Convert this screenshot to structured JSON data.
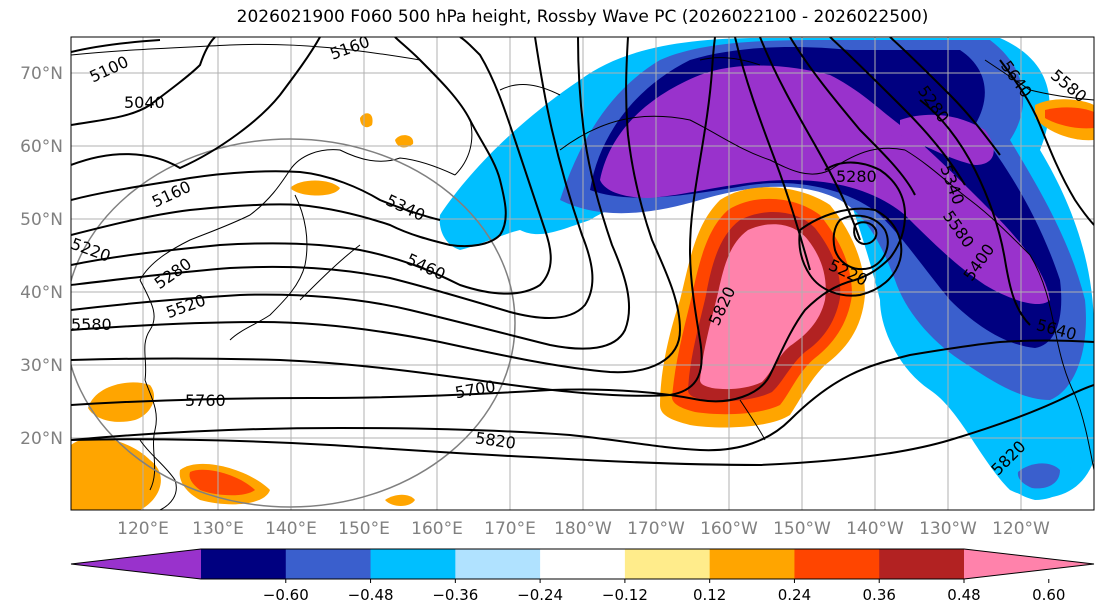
{
  "title": "2026021900 F060 500 hPa height, Rossby Wave PC (2026022100 - 2026022500)",
  "lat_labels": [
    "70°N",
    "60°N",
    "50°N",
    "40°N",
    "30°N",
    "20°N"
  ],
  "lon_labels": [
    "120°E",
    "130°E",
    "140°E",
    "150°E",
    "160°E",
    "170°E",
    "180°W",
    "170°W",
    "160°W",
    "150°W",
    "140°W",
    "130°W",
    "120°W"
  ],
  "colorbar": {
    "colors": [
      "#9932cc",
      "#000080",
      "#3a5fcd",
      "#00bfff",
      "#b0e2ff",
      "#ffffff",
      "#ffec8b",
      "#ffa500",
      "#ff4500",
      "#b22222",
      "#ff82ab"
    ],
    "ticks": [
      "−0.60",
      "−0.48",
      "−0.36",
      "−0.24",
      "−0.12",
      "0.12",
      "0.24",
      "0.36",
      "0.48",
      "0.60"
    ]
  },
  "contour_labels": [
    "5100",
    "5040",
    "5160",
    "5220",
    "5280",
    "5340",
    "5460",
    "5520",
    "5580",
    "5640",
    "5700",
    "5760",
    "5820",
    "5280",
    "5220",
    "5820",
    "5280",
    "5340",
    "5400",
    "5640",
    "5820",
    "5160",
    "5580",
    "5580"
  ]
}
